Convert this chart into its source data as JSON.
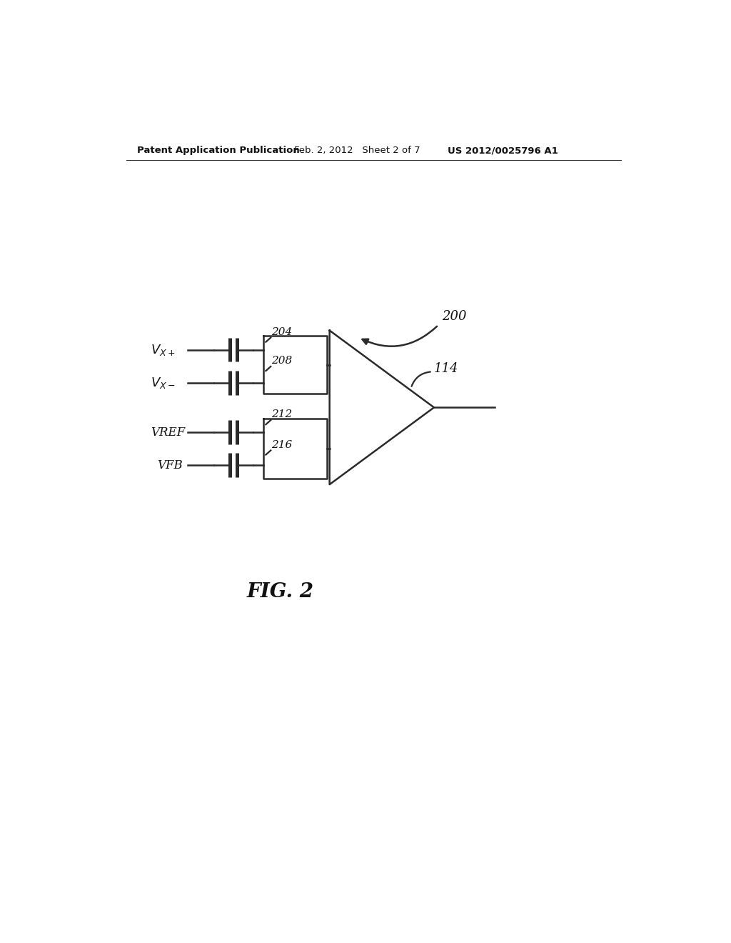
{
  "background_color": "#ffffff",
  "header_left": "Patent Application Publication",
  "header_center": "Feb. 2, 2012   Sheet 2 of 7",
  "header_right": "US 2012/0025796 A1",
  "fig_label": "FIG. 2",
  "label_200": "200",
  "label_114": "114",
  "label_204": "204",
  "label_208": "208",
  "label_212": "212",
  "label_216": "216",
  "label_VREF": "VREF",
  "label_VFB": "VFB",
  "line_color": "#2a2a2a",
  "text_color": "#111111",
  "line_width": 1.8
}
